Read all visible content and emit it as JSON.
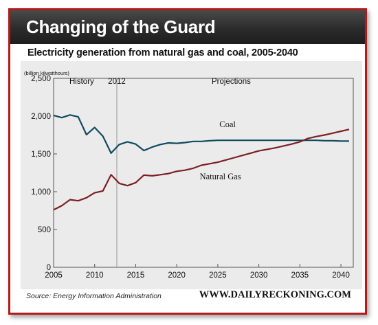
{
  "banner": {
    "title": "Changing of the Guard"
  },
  "footer": {
    "source": "Source: Energy Information Administration",
    "website": "WWW.DAILYRECKONING.COM"
  },
  "chart_data": {
    "type": "line",
    "title": "Electricity generation from natural gas and coal, 2005-2040",
    "ylabel": "(billion kilwatthours)",
    "xlabel": "",
    "xlim": [
      2005,
      2041.5
    ],
    "ylim": [
      0,
      2500
    ],
    "xticks": [
      2005,
      2010,
      2015,
      2020,
      2025,
      2030,
      2035,
      2040
    ],
    "yticks": [
      0,
      500,
      1000,
      1500,
      2000,
      2500
    ],
    "x_tick_labels": [
      "2005",
      "2010",
      "2015",
      "2020",
      "2025",
      "2030",
      "2035",
      "2040"
    ],
    "y_tick_labels": [
      "0",
      "500",
      "1,000",
      "1,500",
      "2,000",
      "2,500"
    ],
    "grid": false,
    "annotations": {
      "history": "History",
      "divider": "2012",
      "divider_x": 2012.7,
      "projections": "Projections"
    },
    "colors": {
      "coal": "#0f4a5e",
      "gas": "#7a1f23",
      "divider": "#999999",
      "background": "#ebebeb"
    },
    "series": [
      {
        "name": "Coal",
        "x": [
          2005,
          2006,
          2007,
          2008,
          2009,
          2010,
          2011,
          2012,
          2013,
          2014,
          2015,
          2016,
          2017,
          2018,
          2019,
          2020,
          2021,
          2022,
          2023,
          2024,
          2025,
          2026,
          2027,
          2028,
          2029,
          2030,
          2031,
          2032,
          2033,
          2034,
          2035,
          2036,
          2037,
          2038,
          2039,
          2040,
          2041
        ],
        "values": [
          2010,
          1980,
          2015,
          1990,
          1755,
          1850,
          1735,
          1510,
          1625,
          1660,
          1630,
          1545,
          1590,
          1625,
          1645,
          1640,
          1650,
          1665,
          1665,
          1675,
          1680,
          1680,
          1680,
          1680,
          1680,
          1680,
          1680,
          1680,
          1680,
          1680,
          1680,
          1680,
          1680,
          1675,
          1675,
          1670,
          1670
        ]
      },
      {
        "name": "Natural Gas",
        "x": [
          2005,
          2006,
          2007,
          2008,
          2009,
          2010,
          2011,
          2012,
          2013,
          2014,
          2015,
          2016,
          2017,
          2018,
          2019,
          2020,
          2021,
          2022,
          2023,
          2024,
          2025,
          2026,
          2027,
          2028,
          2029,
          2030,
          2031,
          2032,
          2033,
          2034,
          2035,
          2036,
          2037,
          2038,
          2039,
          2040,
          2041
        ],
        "values": [
          760,
          815,
          895,
          880,
          920,
          985,
          1010,
          1225,
          1110,
          1080,
          1120,
          1220,
          1210,
          1225,
          1240,
          1270,
          1285,
          1310,
          1350,
          1370,
          1390,
          1420,
          1450,
          1480,
          1510,
          1540,
          1560,
          1580,
          1605,
          1630,
          1660,
          1705,
          1730,
          1750,
          1775,
          1800,
          1825
        ]
      }
    ],
    "series_labels": {
      "coal": "Coal",
      "gas": "Natural Gas"
    }
  }
}
